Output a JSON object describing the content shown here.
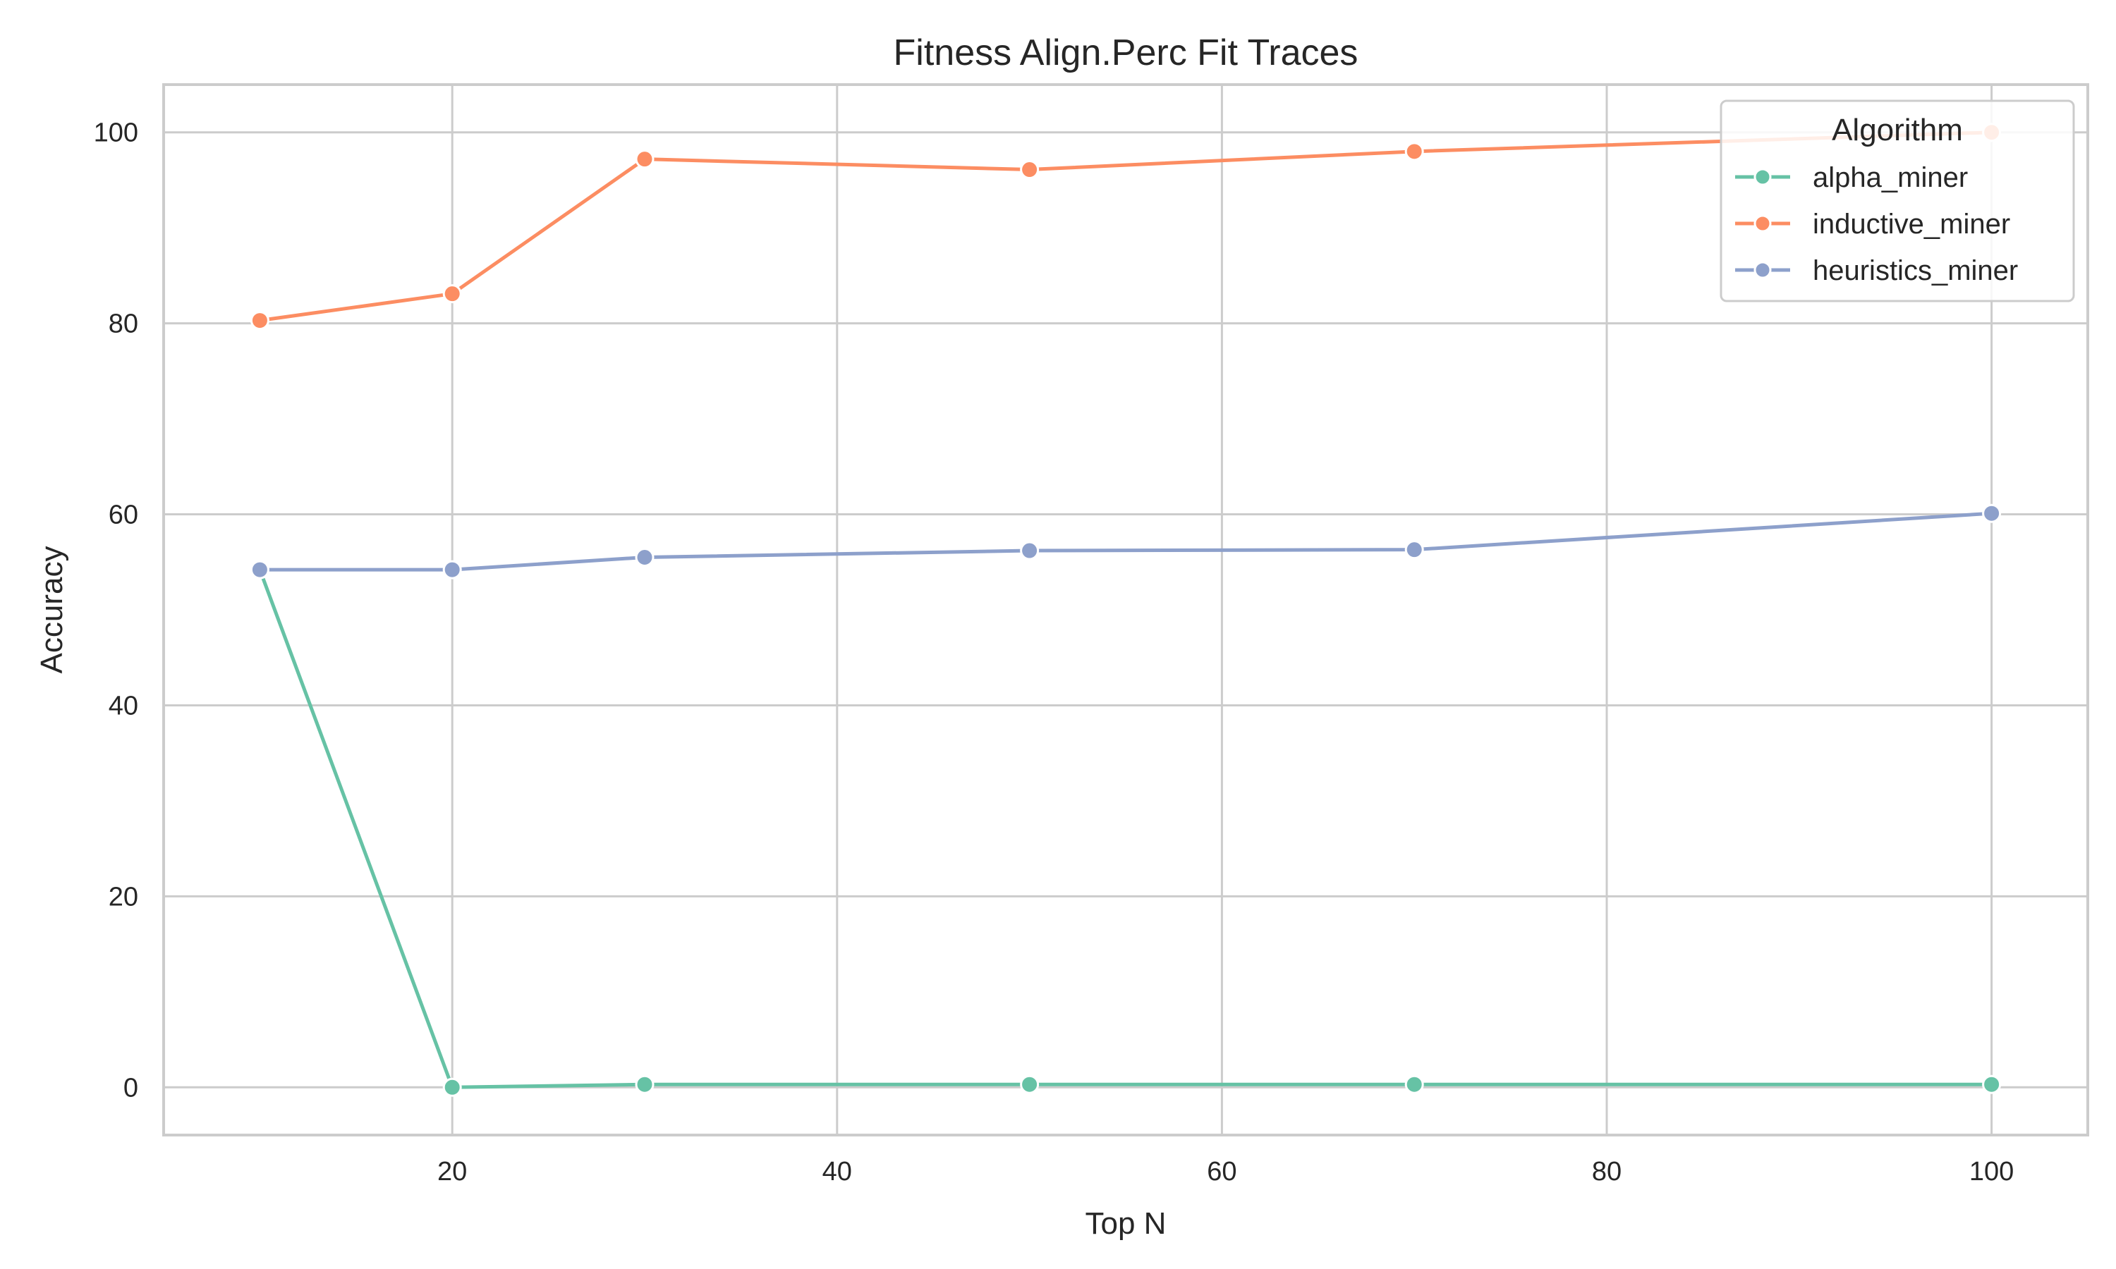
{
  "chart_data": {
    "type": "line",
    "title": "Fitness Align.Perc Fit Traces",
    "xlabel": "Top N",
    "ylabel": "Accuracy",
    "xlim": [
      5,
      105
    ],
    "ylim": [
      -5,
      105
    ],
    "x_ticks": [
      20,
      40,
      60,
      80,
      100
    ],
    "y_ticks": [
      0,
      20,
      40,
      60,
      80,
      100
    ],
    "x_tick_labels": [
      "20",
      "40",
      "60",
      "80",
      "100"
    ],
    "y_tick_labels": [
      "0",
      "20",
      "40",
      "60",
      "80",
      "100"
    ],
    "grid": true,
    "legend": {
      "title": "Algorithm",
      "placement": "top-right"
    },
    "x": [
      10,
      20,
      30,
      50,
      70,
      100
    ],
    "series": [
      {
        "name": "alpha_miner",
        "color": "#66c2a5",
        "values": [
          54.2,
          0.0,
          0.3,
          0.3,
          0.3,
          0.3
        ]
      },
      {
        "name": "inductive_miner",
        "color": "#fc8d62",
        "values": [
          80.3,
          83.1,
          97.2,
          96.1,
          98.0,
          100.0
        ]
      },
      {
        "name": "heuristics_miner",
        "color": "#8da0cb",
        "values": [
          54.2,
          54.2,
          55.5,
          56.2,
          56.3,
          60.1
        ]
      }
    ]
  }
}
